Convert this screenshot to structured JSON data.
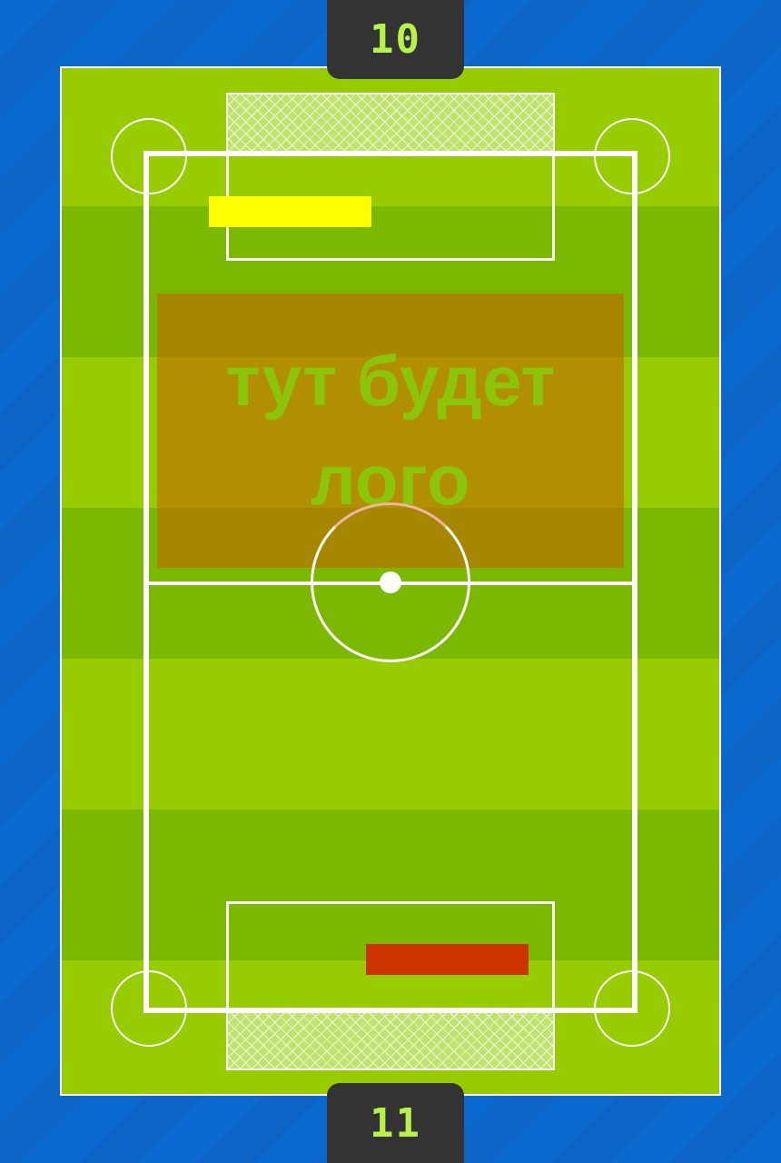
{
  "scores": {
    "top": "10",
    "bottom": "11"
  },
  "logo": {
    "text": "тут будет лого"
  },
  "paddles": {
    "top_color": "#ffff00",
    "bottom_color": "#cc3300"
  },
  "colors": {
    "background": "#0a69cf",
    "grass_light": "#97cc00",
    "grass_dark": "#7bb800",
    "score_text": "#b6f24a"
  }
}
